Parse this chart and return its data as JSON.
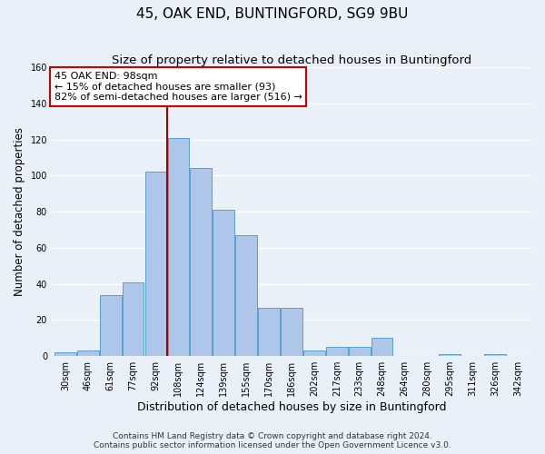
{
  "title": "45, OAK END, BUNTINGFORD, SG9 9BU",
  "subtitle": "Size of property relative to detached houses in Buntingford",
  "xlabel": "Distribution of detached houses by size in Buntingford",
  "ylabel": "Number of detached properties",
  "bin_labels": [
    "30sqm",
    "46sqm",
    "61sqm",
    "77sqm",
    "92sqm",
    "108sqm",
    "124sqm",
    "139sqm",
    "155sqm",
    "170sqm",
    "186sqm",
    "202sqm",
    "217sqm",
    "233sqm",
    "248sqm",
    "264sqm",
    "280sqm",
    "295sqm",
    "311sqm",
    "326sqm",
    "342sqm"
  ],
  "bar_values": [
    2,
    3,
    34,
    41,
    102,
    121,
    104,
    81,
    67,
    27,
    27,
    3,
    5,
    5,
    10,
    0,
    0,
    1,
    0,
    1,
    0
  ],
  "bar_color": "#aec6e8",
  "bar_edge_color": "#5a9fd4",
  "background_color": "#eaf0f8",
  "grid_color": "#ffffff",
  "vline_color": "#a00000",
  "annotation_title": "45 OAK END: 98sqm",
  "annotation_line1": "← 15% of detached houses are smaller (93)",
  "annotation_line2": "82% of semi-detached houses are larger (516) →",
  "annotation_box_color": "#ffffff",
  "annotation_box_edge_color": "#cc0000",
  "ylim": [
    0,
    160
  ],
  "yticks": [
    0,
    20,
    40,
    60,
    80,
    100,
    120,
    140,
    160
  ],
  "footnote1": "Contains HM Land Registry data © Crown copyright and database right 2024.",
  "footnote2": "Contains public sector information licensed under the Open Government Licence v3.0.",
  "title_fontsize": 11,
  "subtitle_fontsize": 9.5,
  "xlabel_fontsize": 9,
  "ylabel_fontsize": 8.5,
  "tick_fontsize": 7,
  "footnote_fontsize": 6.5,
  "annotation_fontsize": 8
}
